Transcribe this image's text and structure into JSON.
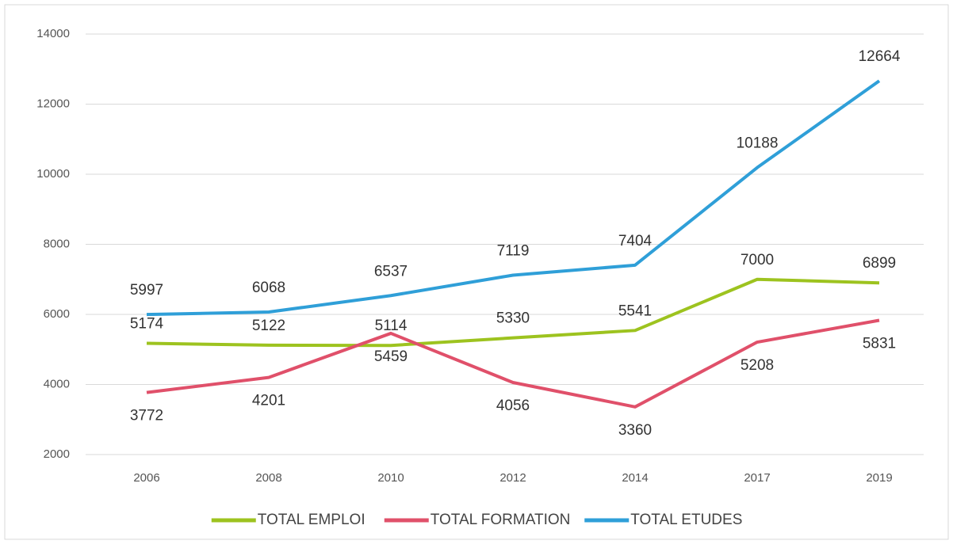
{
  "chart_data": {
    "type": "line",
    "categories": [
      "2006",
      "2008",
      "2010",
      "2012",
      "2014",
      "2017",
      "2019"
    ],
    "series": [
      {
        "name": "TOTAL EMPLOI",
        "color": "#9dc31f",
        "values": [
          5174,
          5122,
          5114,
          5330,
          5541,
          7000,
          6899
        ]
      },
      {
        "name": "TOTAL FORMATION",
        "color": "#e0506a",
        "values": [
          3772,
          4201,
          5459,
          4056,
          3360,
          5208,
          5831
        ]
      },
      {
        "name": "TOTAL ETUDES",
        "color": "#2f9fd8",
        "values": [
          5997,
          6068,
          6537,
          7119,
          7404,
          10188,
          12664
        ]
      }
    ],
    "ylim": [
      2000,
      14000
    ],
    "yticks": [
      2000,
      4000,
      6000,
      8000,
      10000,
      12000,
      14000
    ],
    "grid": true,
    "legend": "bottom"
  }
}
